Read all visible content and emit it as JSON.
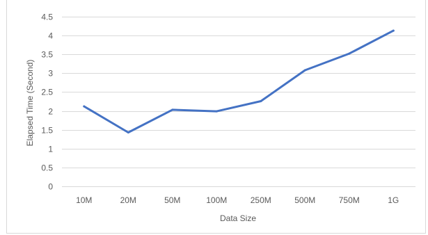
{
  "chart_data": {
    "type": "line",
    "title": "",
    "xlabel": "Data Size",
    "ylabel": "Elapsed Time (Second)",
    "categories": [
      "10M",
      "20M",
      "50M",
      "100M",
      "250M",
      "500M",
      "750M",
      "1G"
    ],
    "ylim": [
      0,
      4.5
    ],
    "yticks": [
      0,
      0.5,
      1,
      1.5,
      2,
      2.5,
      3,
      3.5,
      4,
      4.5
    ],
    "ytick_labels": [
      "0",
      "0.5",
      "1",
      "1.5",
      "2",
      "2.5",
      "3",
      "3.5",
      "4",
      "4.5"
    ],
    "series": [
      {
        "values": [
          2.12,
          1.43,
          2.03,
          1.99,
          2.26,
          3.08,
          3.52,
          4.13
        ],
        "color": "#4472c4"
      }
    ],
    "grid": true,
    "legend": "none",
    "gridline_color": "#d9d9d9"
  }
}
